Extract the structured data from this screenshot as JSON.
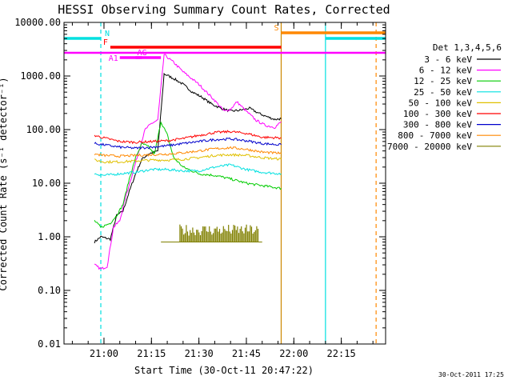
{
  "chart_data": {
    "type": "line",
    "title": "HESSI Observing Summary Count Rates, Corrected",
    "xlabel": "Start Time (30-Oct-11 20:47:22)",
    "ylabel": "Corrected Count Rate (s⁻¹ detector⁻¹)",
    "yscale": "log",
    "ylim": [
      0.01,
      10000
    ],
    "xlim": [
      "20:47:22",
      "22:29:00"
    ],
    "yticks": [
      "10000.00",
      "1000.00",
      "100.00",
      "10.00",
      "1.00",
      "0.10",
      "0.01"
    ],
    "xticks": [
      "21:00",
      "21:15",
      "21:30",
      "21:45",
      "22:00",
      "22:15"
    ],
    "legend_title": "Det 1,3,4,5,6",
    "legend_position": "right",
    "grid": false,
    "series": [
      {
        "name": "3 - 6 keV",
        "color": "#000000",
        "x": [
          "20:57",
          "20:59",
          "21:02",
          "21:04",
          "21:06",
          "21:08",
          "21:10",
          "21:12",
          "21:14",
          "21:17",
          "21:19",
          "21:22",
          "21:25",
          "21:28",
          "21:31",
          "21:34",
          "21:37",
          "21:40",
          "21:43",
          "21:46",
          "21:49",
          "21:52",
          "21:54",
          "21:56"
        ],
        "y": [
          0.8,
          1.0,
          0.9,
          2.5,
          3.0,
          7.0,
          15,
          28,
          35,
          40,
          1100,
          900,
          700,
          500,
          400,
          300,
          250,
          220,
          230,
          250,
          200,
          170,
          155,
          160
        ]
      },
      {
        "name": "6 - 12 keV",
        "color": "#ff00ff",
        "x": [
          "20:57",
          "20:59",
          "21:01",
          "21:03",
          "21:05",
          "21:07",
          "21:09",
          "21:11",
          "21:13",
          "21:15",
          "21:17",
          "21:19",
          "21:22",
          "21:25",
          "21:30",
          "21:35",
          "21:38",
          "21:40",
          "21:42",
          "21:45",
          "21:48",
          "21:51",
          "21:54",
          "21:56"
        ],
        "y": [
          0.3,
          0.25,
          0.28,
          1.5,
          2.0,
          6.0,
          15,
          40,
          100,
          130,
          150,
          2500,
          1800,
          1200,
          700,
          350,
          220,
          240,
          330,
          220,
          150,
          120,
          110,
          140
        ]
      },
      {
        "name": "12 - 25 keV",
        "color": "#00cc00",
        "x": [
          "20:57",
          "20:59",
          "21:02",
          "21:04",
          "21:06",
          "21:08",
          "21:10",
          "21:12",
          "21:14",
          "21:16",
          "21:18",
          "21:20",
          "21:22",
          "21:25",
          "21:30",
          "21:35",
          "21:40",
          "21:45",
          "21:50",
          "21:56"
        ],
        "y": [
          2.0,
          1.5,
          1.8,
          2.5,
          4.0,
          12,
          30,
          55,
          48,
          35,
          140,
          80,
          30,
          20,
          15,
          14,
          12,
          10,
          9,
          8
        ]
      },
      {
        "name": "25 - 50 keV",
        "color": "#00e0e0",
        "x": [
          "20:57",
          "21:00",
          "21:05",
          "21:10",
          "21:15",
          "21:20",
          "21:25",
          "21:30",
          "21:35",
          "21:40",
          "21:45",
          "21:50",
          "21:56"
        ],
        "y": [
          15,
          14,
          15,
          16,
          18,
          18,
          17,
          17,
          20,
          22,
          18,
          16,
          15
        ]
      },
      {
        "name": "50 - 100 keV",
        "color": "#e0c000",
        "x": [
          "20:57",
          "21:00",
          "21:05",
          "21:10",
          "21:15",
          "21:20",
          "21:25",
          "21:30",
          "21:35",
          "21:40",
          "21:45",
          "21:50",
          "21:56"
        ],
        "y": [
          27,
          25,
          25,
          26,
          27,
          27,
          28,
          30,
          33,
          34,
          33,
          30,
          28
        ]
      },
      {
        "name": "100 - 300 keV",
        "color": "#ff0000",
        "x": [
          "20:57",
          "21:00",
          "21:05",
          "21:10",
          "21:15",
          "21:20",
          "21:25",
          "21:30",
          "21:35",
          "21:40",
          "21:45",
          "21:50",
          "21:56"
        ],
        "y": [
          78,
          70,
          60,
          58,
          60,
          62,
          68,
          78,
          88,
          92,
          85,
          72,
          70
        ]
      },
      {
        "name": "300 - 800 keV",
        "color": "#0000cc",
        "x": [
          "20:57",
          "21:00",
          "21:05",
          "21:10",
          "21:15",
          "21:20",
          "21:25",
          "21:30",
          "21:35",
          "21:40",
          "21:45",
          "21:50",
          "21:56"
        ],
        "y": [
          55,
          52,
          47,
          45,
          47,
          50,
          55,
          60,
          65,
          67,
          62,
          55,
          52
        ]
      },
      {
        "name": "800 - 7000 keV",
        "color": "#ff8800",
        "x": [
          "20:57",
          "21:00",
          "21:05",
          "21:10",
          "21:15",
          "21:20",
          "21:25",
          "21:30",
          "21:35",
          "21:40",
          "21:45",
          "21:50",
          "21:56"
        ],
        "y": [
          35,
          33,
          32,
          33,
          34,
          35,
          37,
          40,
          44,
          46,
          43,
          38,
          36
        ]
      },
      {
        "name": "7000 - 20000 keV",
        "color": "#808000",
        "x": [
          "21:18",
          "21:25",
          "21:30",
          "21:35",
          "21:40",
          "21:45",
          "21:50"
        ],
        "y": [
          0.8,
          0.8,
          0.8,
          0.8,
          0.8,
          0.8,
          0.8
        ]
      }
    ],
    "flag_bars": [
      {
        "label": "N",
        "color": "#00e0e0",
        "segments": [
          [
            "20:47:22",
            "20:59"
          ],
          [
            "22:10",
            "22:29"
          ]
        ]
      },
      {
        "label": "S",
        "color": "#ff8800",
        "segments": [
          [
            "21:56",
            "22:29"
          ]
        ]
      },
      {
        "label": "F",
        "color": "#ff0000",
        "segments": [
          [
            "21:02",
            "21:56"
          ]
        ]
      },
      {
        "label": "",
        "color": "#ff00ff",
        "segments": [
          [
            "20:47:22",
            "22:29"
          ]
        ]
      },
      {
        "label": "AG",
        "color": "#ff00ff",
        "segments": [
          [
            "21:10",
            "21:18"
          ]
        ]
      },
      {
        "label": "A1",
        "color": "#ff00ff",
        "segments": [
          [
            "21:05",
            "21:12"
          ]
        ]
      }
    ],
    "vertical_lines": [
      {
        "time": "20:59",
        "color": "#00e0e0",
        "style": "dashed"
      },
      {
        "time": "21:56",
        "color": "#cc8800",
        "style": "solid"
      },
      {
        "time": "22:10",
        "color": "#00e0e0",
        "style": "solid"
      },
      {
        "time": "22:26",
        "color": "#ff8800",
        "style": "dashed"
      }
    ]
  },
  "footer": {
    "timestamp": "30-Oct-2011 17:25"
  }
}
